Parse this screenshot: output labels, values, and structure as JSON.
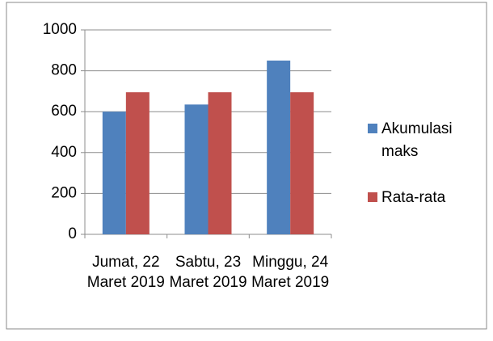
{
  "chart_data": {
    "type": "bar",
    "categories": [
      "Jumat, 22 Maret 2019",
      "Sabtu, 23 Maret 2019",
      "Minggu, 24 Maret 2019"
    ],
    "series": [
      {
        "name": "Akumulasi maks",
        "color": "#4f81bd",
        "values": [
          600,
          635,
          850
        ]
      },
      {
        "name": "Rata-rata",
        "color": "#c0504d",
        "values": [
          695,
          695,
          695
        ]
      }
    ],
    "ylim": [
      0,
      1000
    ],
    "yticks": [
      0,
      200,
      400,
      600,
      800,
      1000
    ],
    "grid": true,
    "legend": "right"
  }
}
